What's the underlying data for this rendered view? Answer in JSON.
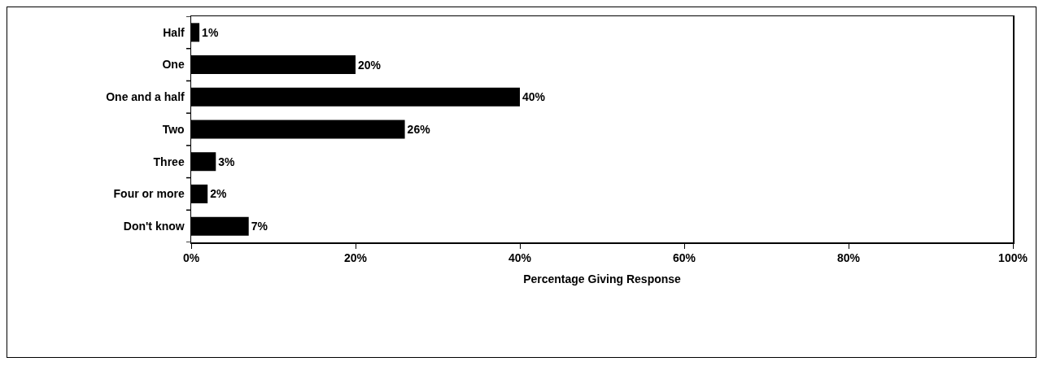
{
  "chart_data": {
    "type": "bar",
    "orientation": "horizontal",
    "xlabel": "Percentage Giving Response",
    "categories": [
      "Half",
      "One",
      "One and a half",
      "Two",
      "Three",
      "Four or more",
      "Don't know"
    ],
    "values": [
      1,
      20,
      40,
      26,
      3,
      2,
      7
    ],
    "color": "#000000",
    "value_labels": [
      "1%",
      "20%",
      "40%",
      "26%",
      "3%",
      "2%",
      "7%"
    ],
    "xlim": [
      0,
      100
    ],
    "xticks": [
      {
        "value": 0,
        "label": "0%"
      },
      {
        "value": 20,
        "label": "20%"
      },
      {
        "value": 40,
        "label": "40%"
      },
      {
        "value": 60,
        "label": "60%"
      },
      {
        "value": 80,
        "label": "80%"
      },
      {
        "value": 100,
        "label": "100%"
      }
    ],
    "grid": false,
    "legend": false
  }
}
